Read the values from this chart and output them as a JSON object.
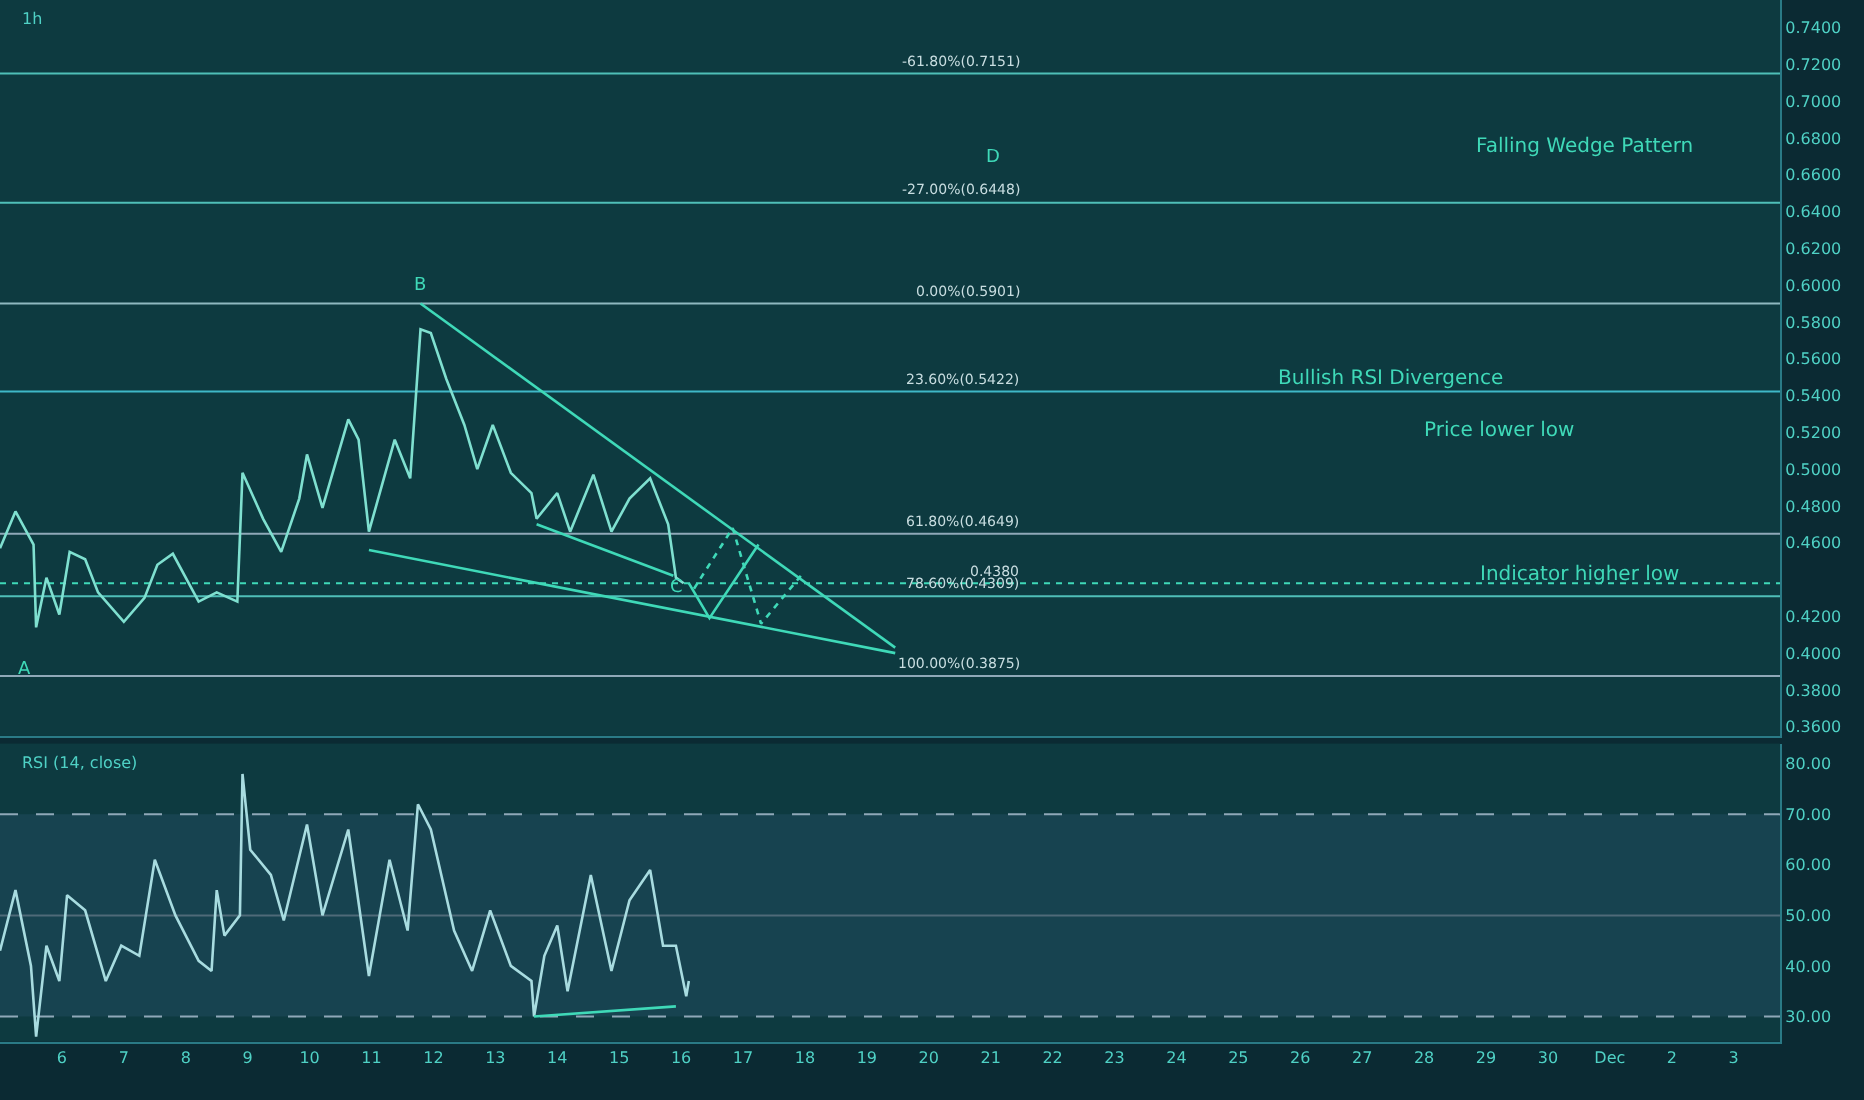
{
  "chart_data": [
    {
      "type": "line",
      "title": "1h",
      "xlim": [
        "--11-05T00:00",
        "--12-03T18:00"
      ],
      "ylim": [
        0.355,
        0.755
      ],
      "tick_labels": "y",
      "yticks": [
        {
          "value": 0.36,
          "label": "0.3600"
        },
        {
          "value": 0.38,
          "label": "0.3800"
        },
        {
          "value": 0.4,
          "label": "0.4000"
        },
        {
          "value": 0.42,
          "label": "0.4200"
        },
        {
          "value": 0.46,
          "label": "0.4600"
        },
        {
          "value": 0.48,
          "label": "0.4800"
        },
        {
          "value": 0.5,
          "label": "0.5000"
        },
        {
          "value": 0.52,
          "label": "0.5200"
        },
        {
          "value": 0.54,
          "label": "0.5400"
        },
        {
          "value": 0.56,
          "label": "0.5600"
        },
        {
          "value": 0.58,
          "label": "0.5800"
        },
        {
          "value": 0.6,
          "label": "0.6000"
        },
        {
          "value": 0.62,
          "label": "0.6200"
        },
        {
          "value": 0.64,
          "label": "0.6400"
        },
        {
          "value": 0.66,
          "label": "0.6600"
        },
        {
          "value": 0.68,
          "label": "0.6800"
        },
        {
          "value": 0.7,
          "label": "0.7000"
        },
        {
          "value": 0.72,
          "label": "0.7200"
        },
        {
          "value": 0.74,
          "label": "0.7400"
        }
      ],
      "series": [
        {
          "color": "#7fe0d0",
          "x": [
            "--11-05T00:00",
            "--11-05T06:00",
            "--11-05T13:00",
            "--11-05T14:00",
            "--11-05T18:00",
            "--11-05T23:00",
            "--11-06T03:00",
            "--11-06T09:00",
            "--11-06T14:00",
            "--11-07T00:00",
            "--11-07T08:00",
            "--11-07T13:00",
            "--11-07T19:00",
            "--11-08T05:00",
            "--11-08T12:00",
            "--11-08T20:00",
            "--11-08T22:00",
            "--11-09T06:00",
            "--11-09T13:00",
            "--11-09T20:00",
            "--11-09T23:00",
            "--11-10T05:00",
            "--11-10T15:00",
            "--11-10T19:00",
            "--11-10T23:00",
            "--11-11T09:00",
            "--11-11T15:00",
            "--11-11T19:00",
            "--11-11T23:00",
            "--11-12T05:00",
            "--11-12T12:00",
            "--11-12T17:00",
            "--11-12T23:00",
            "--11-13T06:00",
            "--11-13T14:00",
            "--11-13T16:00",
            "--11-14T00:00",
            "--11-14T05:00",
            "--11-14T14:00",
            "--11-14T21:00",
            "--11-15T04:00",
            "--11-15T12:00",
            "--11-15T19:00",
            "--11-15T22:00",
            "--11-16T01:00"
          ],
          "values": [
            0.457,
            0.477,
            0.459,
            0.414,
            0.441,
            0.421,
            0.455,
            0.451,
            0.433,
            0.417,
            0.43,
            0.448,
            0.454,
            0.428,
            0.433,
            0.428,
            0.498,
            0.473,
            0.455,
            0.484,
            0.508,
            0.479,
            0.527,
            0.516,
            0.466,
            0.516,
            0.495,
            0.576,
            0.574,
            0.549,
            0.524,
            0.5,
            0.524,
            0.498,
            0.487,
            0.473,
            0.487,
            0.466,
            0.497,
            0.466,
            0.484,
            0.495,
            0.47,
            0.441,
            0.438
          ]
        },
        {
          "color": "#3fd9b8",
          "x": [
            "--11-11T19:00",
            "--11-19T11:00"
          ],
          "values": [
            0.59,
            0.403
          ]
        },
        {
          "color": "#3fd9b8",
          "x": [
            "--11-10T23:00",
            "--11-19T11:00"
          ],
          "values": [
            0.456,
            0.4
          ]
        },
        {
          "color": "#3fd9b8",
          "x": [
            "--11-13T16:00",
            "--11-15T21:00"
          ],
          "values": [
            0.47,
            0.442
          ]
        },
        {
          "color": "#3fd9b8",
          "x": [
            "--11-16T03:00",
            "--11-16T11:00",
            "--11-17T06:00"
          ],
          "values": [
            0.438,
            0.419,
            0.459
          ]
        },
        {
          "color": "#3fd9b8",
          "line_style": "dotted",
          "x": [
            "--11-16T05:00",
            "--11-16T20:00",
            "--11-17T07:00",
            "--11-17T23:00"
          ],
          "values": [
            0.435,
            0.468,
            0.416,
            0.443
          ]
        }
      ],
      "ref_lines": [
        {
          "axis": "y",
          "value": 0.7151,
          "label": "-61.80%(0.7151)",
          "color": "#4fbfb8"
        },
        {
          "axis": "y",
          "value": 0.6448,
          "label": "-27.00%(0.6448)",
          "color": "#4fbfb8"
        },
        {
          "axis": "y",
          "value": 0.5901,
          "label": "0.00%(0.5901)",
          "color": "#8fb8c0"
        },
        {
          "axis": "y",
          "value": 0.5422,
          "label": "23.60%(0.5422)",
          "color": "#3fb8c8"
        },
        {
          "axis": "y",
          "value": 0.4649,
          "label": "61.80%(0.4649)",
          "color": "#8fa8b8"
        },
        {
          "axis": "y",
          "value": 0.4309,
          "label": "78.60%(0.4309)",
          "color": "#4fbfb8"
        },
        {
          "axis": "y",
          "value": 0.3875,
          "label": "100.00%(0.3875)",
          "color": "#8fa8b8"
        },
        {
          "axis": "y",
          "value": 0.438,
          "label": "0.4380",
          "color": "#3fd9b8",
          "line_style": "dotted"
        }
      ],
      "annotations": [
        "A",
        "B",
        "C",
        "D",
        "Falling Wedge Pattern",
        "Bullish RSI Divergence",
        "Price lower low",
        "Indicator higher low"
      ]
    },
    {
      "type": "line",
      "title": "RSI (14, close)",
      "xlim": [
        "--11-05T00:00",
        "--12-03T18:00"
      ],
      "ylim": [
        25,
        84
      ],
      "xticks": [
        {
          "value": "--11-06",
          "label": "6"
        },
        {
          "value": "--11-07",
          "label": "7"
        },
        {
          "value": "--11-08",
          "label": "8"
        },
        {
          "value": "--11-09",
          "label": "9"
        },
        {
          "value": "--11-10",
          "label": "10"
        },
        {
          "value": "--11-11",
          "label": "11"
        },
        {
          "value": "--11-12",
          "label": "12"
        },
        {
          "value": "--11-13",
          "label": "13"
        },
        {
          "value": "--11-14",
          "label": "14"
        },
        {
          "value": "--11-15",
          "label": "15"
        },
        {
          "value": "--11-16",
          "label": "16"
        },
        {
          "value": "--11-17",
          "label": "17"
        },
        {
          "value": "--11-18",
          "label": "18"
        },
        {
          "value": "--11-19",
          "label": "19"
        },
        {
          "value": "--11-20",
          "label": "20"
        },
        {
          "value": "--11-21",
          "label": "21"
        },
        {
          "value": "--11-22",
          "label": "22"
        },
        {
          "value": "--11-23",
          "label": "23"
        },
        {
          "value": "--11-24",
          "label": "24"
        },
        {
          "value": "--11-25",
          "label": "25"
        },
        {
          "value": "--11-26",
          "label": "26"
        },
        {
          "value": "--11-27",
          "label": "27"
        },
        {
          "value": "--11-28",
          "label": "28"
        },
        {
          "value": "--11-29",
          "label": "29"
        },
        {
          "value": "--11-30",
          "label": "30"
        },
        {
          "value": "--12-01",
          "label": "Dec"
        },
        {
          "value": "--12-02",
          "label": "2"
        },
        {
          "value": "--12-03",
          "label": "3"
        }
      ],
      "yticks": [
        {
          "value": 30,
          "label": "30.00"
        },
        {
          "value": 40,
          "label": "40.00"
        },
        {
          "value": 50,
          "label": "50.00"
        },
        {
          "value": 60,
          "label": "60.00"
        },
        {
          "value": 70,
          "label": "70.00"
        },
        {
          "value": 80,
          "label": "80.00"
        }
      ],
      "series": [
        {
          "color": "#a8dce0",
          "x": [
            "--11-05T00:00",
            "--11-05T06:00",
            "--11-05T12:00",
            "--11-05T14:00",
            "--11-05T18:00",
            "--11-05T23:00",
            "--11-06T02:00",
            "--11-06T09:00",
            "--11-06T17:00",
            "--11-06T23:00",
            "--11-07T06:00",
            "--11-07T12:00",
            "--11-07T20:00",
            "--11-08T05:00",
            "--11-08T10:00",
            "--11-08T12:00",
            "--11-08T15:00",
            "--11-08T21:00",
            "--11-08T22:00",
            "--11-09T01:00",
            "--11-09T09:00",
            "--11-09T14:00",
            "--11-09T23:00",
            "--11-10T05:00",
            "--11-10T15:00",
            "--11-10T23:00",
            "--11-11T07:00",
            "--11-11T14:00",
            "--11-11T18:00",
            "--11-11T23:00",
            "--11-12T08:00",
            "--11-12T15:00",
            "--11-12T22:00",
            "--11-13T06:00",
            "--11-13T14:00",
            "--11-13T15:00",
            "--11-13T19:00",
            "--11-14T00:00",
            "--11-14T04:00",
            "--11-14T13:00",
            "--11-14T21:00",
            "--11-15T04:00",
            "--11-15T12:00",
            "--11-15T17:00",
            "--11-15T22:00",
            "--11-16T02:00",
            "--11-16T03:00"
          ],
          "values": [
            43,
            55,
            40,
            26,
            44,
            37,
            54,
            51,
            37,
            44,
            42,
            61,
            50,
            41,
            39,
            55,
            46,
            50,
            78,
            63,
            58,
            49,
            68,
            50,
            67,
            38,
            61,
            47,
            72,
            67,
            47,
            39,
            51,
            40,
            37,
            30,
            42,
            48,
            35,
            58,
            39,
            53,
            59,
            44,
            44,
            34,
            37
          ]
        },
        {
          "color": "#3fd9b8",
          "x": [
            "--11-13T15:00",
            "--11-15T22:00"
          ],
          "values": [
            30,
            32
          ]
        }
      ],
      "bands": [
        {
          "axis": "y",
          "from": 30,
          "to": 70,
          "color": "#1e4a5c"
        }
      ],
      "ref_lines": [
        {
          "axis": "y",
          "value": 70,
          "color": "#8fa8b8",
          "line_style": "dashed"
        },
        {
          "axis": "y",
          "value": 50,
          "color": "#4f6a78"
        },
        {
          "axis": "y",
          "value": 30,
          "color": "#8fa8b8",
          "line_style": "dashed"
        }
      ]
    }
  ]
}
